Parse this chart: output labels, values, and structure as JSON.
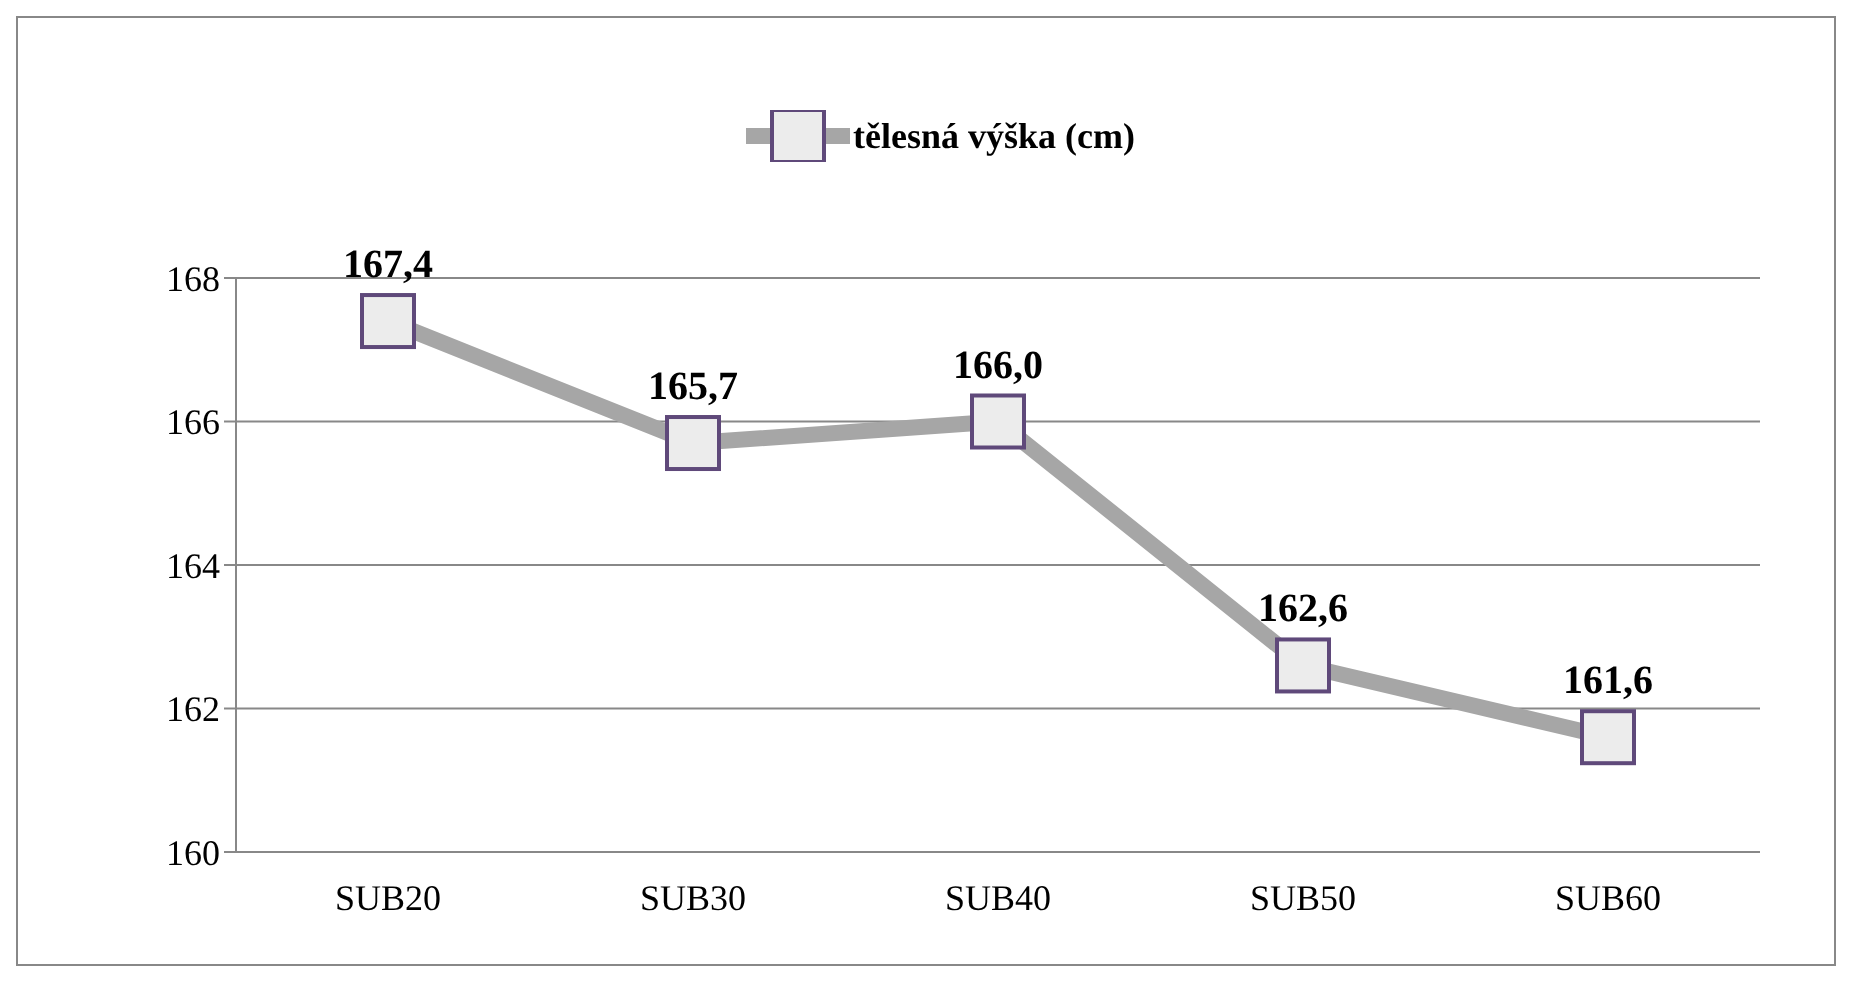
{
  "chart_data": {
    "type": "line",
    "categories": [
      "SUB20",
      "SUB30",
      "SUB40",
      "SUB50",
      "SUB60"
    ],
    "series": [
      {
        "name": "tělesná výška (cm)",
        "color": "#a6a6a6",
        "values": [
          167.4,
          165.7,
          166.0,
          162.6,
          161.6
        ],
        "value_labels": [
          "167,4",
          "165,7",
          "166,0",
          "162,6",
          "161,6"
        ]
      }
    ],
    "ylim": [
      160,
      168
    ],
    "yticks": [
      160,
      162,
      164,
      166,
      168
    ],
    "grid": "y",
    "legend": "top",
    "marker": "square",
    "line_style": "solid"
  }
}
